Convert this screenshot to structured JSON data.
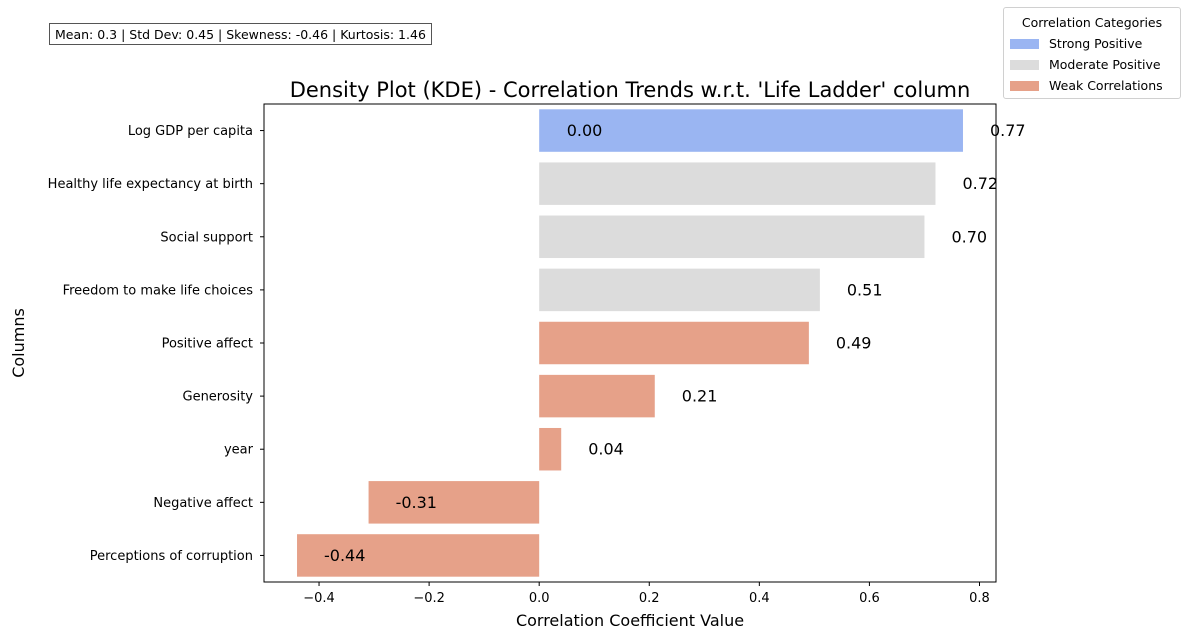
{
  "stats_text": "Mean: 0.3 | Std Dev: 0.45 | Skewness: -0.46 | Kurtosis: 1.46",
  "legend": {
    "title": "Correlation Categories",
    "items": [
      {
        "label": "Strong Positive",
        "color": "#9ab5f2"
      },
      {
        "label": "Moderate Positive",
        "color": "#dcdcdc"
      },
      {
        "label": "Weak Correlations",
        "color": "#e6a189"
      }
    ]
  },
  "chart_data": {
    "type": "bar",
    "orientation": "horizontal",
    "title": "Density Plot (KDE) - Correlation Trends w.r.t. 'Life Ladder' column",
    "xlabel": "Correlation Coefficient Value",
    "ylabel": "Columns",
    "xlim": [
      -0.5,
      0.83
    ],
    "xticks": [
      -0.4,
      -0.2,
      0.0,
      0.2,
      0.4,
      0.6,
      0.8
    ],
    "xtick_labels": [
      "−0.4",
      "−0.2",
      "0.0",
      "0.2",
      "0.4",
      "0.6",
      "0.8"
    ],
    "grid": false,
    "legend_placement": "outside top-right",
    "categories": [
      "Log GDP per capita",
      "Healthy life expectancy at birth",
      "Social support",
      "Freedom to make life choices",
      "Positive affect",
      "Generosity",
      "year",
      "Negative affect",
      "Perceptions of corruption"
    ],
    "values": [
      0.77,
      0.72,
      0.7,
      0.51,
      0.49,
      0.21,
      0.04,
      -0.31,
      -0.44
    ],
    "value_labels": [
      "0.77",
      "0.72",
      "0.70",
      "0.51",
      "0.49",
      "0.21",
      "0.04",
      "-0.31",
      "-0.44"
    ],
    "bar_categories": [
      "Strong Positive",
      "Moderate Positive",
      "Moderate Positive",
      "Moderate Positive",
      "Weak Correlations",
      "Weak Correlations",
      "Weak Correlations",
      "Weak Correlations",
      "Weak Correlations"
    ],
    "annotations": [
      {
        "text": "0.00",
        "x": 0.05,
        "category": "Log GDP per capita"
      }
    ]
  }
}
